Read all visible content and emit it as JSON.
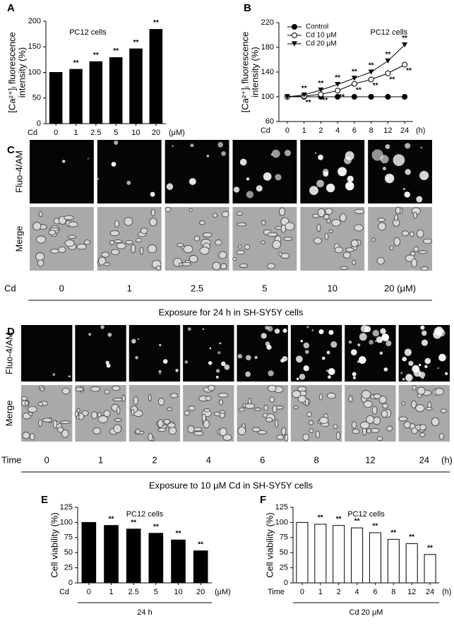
{
  "chart_data": [
    {
      "type": "bar",
      "panel": "A",
      "annotation": "PC12 cells",
      "ylabel": [
        "[Ca²⁺]ᵢ fluorescence",
        "intensity (%)"
      ],
      "x_prefix": "Cd",
      "x_unit": "(μM)",
      "color": "#000000",
      "categories": [
        "0",
        "1",
        "2.5",
        "5",
        "10",
        "20"
      ],
      "values": [
        100,
        106,
        121,
        129,
        146,
        184
      ],
      "significance": [
        null,
        "**",
        "**",
        "**",
        "**",
        "**"
      ],
      "ylim": [
        0,
        200
      ],
      "yticks": [
        0,
        50,
        100,
        150,
        200
      ]
    },
    {
      "type": "line",
      "panel": "B",
      "annotation": "PC12 cells",
      "ylabel": [
        "[Ca²⁺]ᵢ fluorescence",
        "intensity (%)"
      ],
      "x_prefix": "Cd",
      "x_unit": "(h)",
      "legend": "upper left",
      "categories": [
        "0",
        "1",
        "2",
        "4",
        "6",
        "8",
        "12",
        "24"
      ],
      "series": [
        {
          "name": "Control",
          "color": "#000000",
          "marker": "circle-filled",
          "values": [
            100,
            100,
            100,
            100,
            100,
            100,
            100,
            100
          ],
          "significance": [
            null,
            null,
            null,
            null,
            null,
            null,
            null,
            null
          ]
        },
        {
          "name": "Cd 10 μM",
          "color": "#000000",
          "marker": "circle-open",
          "values": [
            100,
            101,
            104,
            110,
            121,
            128,
            138,
            152
          ],
          "significance": [
            null,
            "**",
            "**",
            "**",
            "**",
            "**",
            "**",
            "**"
          ]
        },
        {
          "name": "Cd 20 μM",
          "color": "#000000",
          "marker": "triangle-down",
          "values": [
            100,
            103,
            111,
            120,
            130,
            140,
            158,
            184
          ],
          "significance": [
            null,
            "**",
            "**",
            "**",
            "**",
            "**",
            "**",
            "**"
          ]
        }
      ],
      "ylim": [
        60,
        220
      ],
      "yticks": [
        60,
        100,
        140,
        180,
        220
      ]
    },
    {
      "type": "bar",
      "panel": "E",
      "annotation": "PC12 cells",
      "ylabel": [
        "Cell viability (%)"
      ],
      "x_prefix": "Cd",
      "x_unit": "(μM)",
      "xlabel": "24 h",
      "color": "#000000",
      "categories": [
        "0",
        "1",
        "2.5",
        "5",
        "10",
        "20"
      ],
      "values": [
        100,
        95,
        89,
        82,
        71,
        53
      ],
      "significance": [
        null,
        "**",
        "**",
        "**",
        "**",
        "**"
      ],
      "ylim": [
        0,
        125
      ],
      "yticks": [
        0,
        25,
        50,
        75,
        100,
        125
      ]
    },
    {
      "type": "bar",
      "panel": "F",
      "annotation": "PC12 cells",
      "ylabel": [
        "Cell viability (%)"
      ],
      "x_prefix": "Time",
      "x_unit": "(h)",
      "xlabel": "Cd 20 μM",
      "color": "#ffffff",
      "categories": [
        "0",
        "1",
        "2",
        "4",
        "6",
        "8",
        "12",
        "24"
      ],
      "values": [
        100,
        97,
        95,
        91,
        83,
        72,
        65,
        47
      ],
      "significance": [
        null,
        "**",
        "**",
        "**",
        "**",
        "**",
        "**",
        "**"
      ],
      "ylim": [
        0,
        125
      ],
      "yticks": [
        0,
        25,
        50,
        75,
        100,
        125
      ]
    }
  ],
  "panel_c": {
    "letter": "C",
    "row_labels": [
      "Fluo-4/AM",
      "Merge"
    ],
    "col_prefix": "Cd",
    "columns": [
      "0",
      "1",
      "2.5",
      "5",
      "10",
      "20 (μM)"
    ],
    "caption": "Exposure for 24 h in SH-SY5Y cells"
  },
  "panel_d": {
    "letter": "D",
    "row_labels": [
      "Fluo-4/AM",
      "Merge"
    ],
    "col_prefix": "Time",
    "columns": [
      "0",
      "1",
      "2",
      "4",
      "6",
      "8",
      "12",
      "24"
    ],
    "col_unit": "(h)",
    "caption": "Exposure to 10 μM Cd in SH-SY5Y cells"
  }
}
